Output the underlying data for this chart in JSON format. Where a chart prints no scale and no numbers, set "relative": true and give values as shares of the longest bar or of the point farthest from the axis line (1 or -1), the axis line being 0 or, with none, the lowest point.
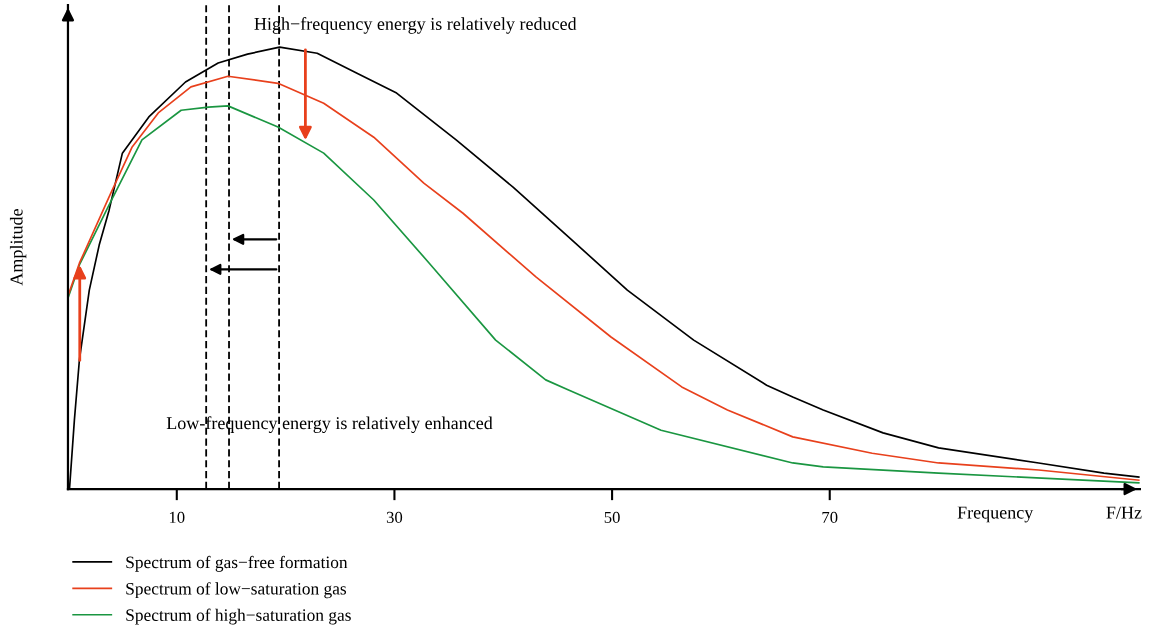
{
  "chart_data": {
    "type": "line",
    "relative": true,
    "ylabel": "Amplitude",
    "xlabel": "Frequency",
    "xlim": [
      0,
      98.5
    ],
    "xticks": [
      10,
      30,
      50,
      70
    ],
    "annotations": [
      "High−frequency energy is relatively reduced",
      "Low-frequency energy is relatively enhanced",
      "F/Hz"
    ],
    "ref_lines": [
      {
        "axis": "x",
        "value": 12.7,
        "color": "#000000",
        "line_style": "dashed"
      },
      {
        "axis": "x",
        "value": 14.8,
        "color": "#000000",
        "line_style": "dashed"
      },
      {
        "axis": "x",
        "value": 19.4,
        "color": "#000000",
        "line_style": "dashed"
      }
    ],
    "legend": "bottom",
    "grid": false,
    "series": [
      {
        "name": "Spectrum of gas−free formation",
        "color": "#000000",
        "x": [
          0.14,
          0.59,
          1.05,
          1.96,
          2.87,
          3.78,
          5.0,
          7.43,
          10.8,
          13.8,
          16.5,
          19.45,
          22.9,
          26.56,
          30.2,
          35.67,
          40.9,
          46.6,
          51.4,
          57.5,
          64.2,
          66.6,
          69.4,
          74.9,
          80.0,
          89.2,
          95.2,
          98.4
        ],
        "values": [
          0,
          0.156,
          0.292,
          0.45,
          0.552,
          0.631,
          0.76,
          0.842,
          0.921,
          0.964,
          0.984,
          1.0,
          0.986,
          0.941,
          0.896,
          0.79,
          0.683,
          0.557,
          0.45,
          0.337,
          0.235,
          0.208,
          0.179,
          0.127,
          0.093,
          0.059,
          0.036,
          0.027
        ]
      },
      {
        "name": "Spectrum of low−saturation gas",
        "color": "#e8401c",
        "x": [
          0,
          1.05,
          3.78,
          5.9,
          8.3,
          11.3,
          14.7,
          19.3,
          23.5,
          28.1,
          32.7,
          36.3,
          43.0,
          49.9,
          56.4,
          60.6,
          66.6,
          73.9,
          80.0,
          89.2,
          98.4
        ],
        "values": [
          0.437,
          0.511,
          0.661,
          0.774,
          0.851,
          0.91,
          0.934,
          0.918,
          0.873,
          0.796,
          0.692,
          0.624,
          0.48,
          0.344,
          0.231,
          0.179,
          0.118,
          0.081,
          0.059,
          0.043,
          0.02
        ]
      },
      {
        "name": "Spectrum of high−saturation gas",
        "color": "#1a9641",
        "x": [
          0,
          1.05,
          3.78,
          6.8,
          10.4,
          12.9,
          14.7,
          19.3,
          23.5,
          28.1,
          33.2,
          39.3,
          43.9,
          46.0,
          54.5,
          66.6,
          69.4,
          80.0,
          98.4
        ],
        "values": [
          0.432,
          0.507,
          0.643,
          0.79,
          0.857,
          0.864,
          0.867,
          0.819,
          0.76,
          0.654,
          0.511,
          0.337,
          0.247,
          0.224,
          0.133,
          0.059,
          0.05,
          0.036,
          0.014
        ]
      }
    ]
  }
}
